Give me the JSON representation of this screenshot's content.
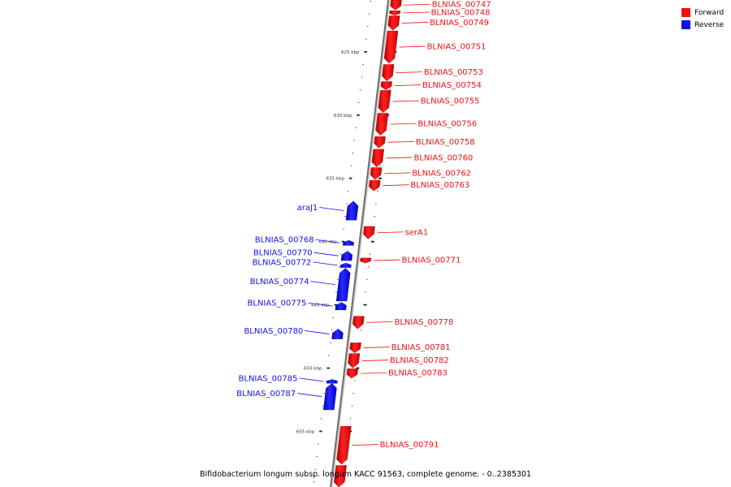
{
  "legend": {
    "forward_label": "Forward",
    "reverse_label": "Reverse",
    "forward_color": "#ee1111",
    "reverse_color": "#1111ee"
  },
  "caption": "Bifidobacterium longum subsp. longum KACC 91563, complete genome. - 0..2385301",
  "axis": {
    "unit": "kbp",
    "range_kbp": [
      620.9,
      659.4
    ],
    "major_ticks": [
      625,
      630,
      635,
      640,
      645,
      650,
      655
    ],
    "major_tick_labels": [
      "625 kbp",
      "630 kbp",
      "635 kbp",
      "640 kbp",
      "645 kbp",
      "650 kbp",
      "655 kbp"
    ],
    "minor_tick_step_kbp": 1
  },
  "genes": [
    {
      "name": "BLNIAS_00747",
      "strand": "forward",
      "start": 620.9,
      "end": 621.7
    },
    {
      "name": "BLNIAS_00748",
      "strand": "forward",
      "start": 621.75,
      "end": 622.1
    },
    {
      "name": "BLNIAS_00749",
      "strand": "forward",
      "start": 622.15,
      "end": 623.3
    },
    {
      "name": "BLNIAS_00751",
      "strand": "forward",
      "start": 623.35,
      "end": 625.9
    },
    {
      "name": "BLNIAS_00753",
      "strand": "forward",
      "start": 626.0,
      "end": 627.3
    },
    {
      "name": "BLNIAS_00754",
      "strand": "forward",
      "start": 627.35,
      "end": 628.0
    },
    {
      "name": "BLNIAS_00755",
      "strand": "forward",
      "start": 628.05,
      "end": 629.8
    },
    {
      "name": "BLNIAS_00756",
      "strand": "forward",
      "start": 629.85,
      "end": 631.6
    },
    {
      "name": "BLNIAS_00758",
      "strand": "forward",
      "start": 631.7,
      "end": 632.6
    },
    {
      "name": "BLNIAS_00760",
      "strand": "forward",
      "start": 632.7,
      "end": 634.1
    },
    {
      "name": "BLNIAS_00762",
      "strand": "forward",
      "start": 634.15,
      "end": 635.1
    },
    {
      "name": "BLNIAS_00763",
      "strand": "forward",
      "start": 635.15,
      "end": 636.0
    },
    {
      "name": "araJ1",
      "strand": "reverse",
      "start": 636.8,
      "end": 638.3
    },
    {
      "name": "serA1",
      "strand": "forward",
      "start": 638.8,
      "end": 639.8
    },
    {
      "name": "BLNIAS_00768",
      "strand": "reverse",
      "start": 639.9,
      "end": 640.3
    },
    {
      "name": "BLNIAS_00770",
      "strand": "reverse",
      "start": 640.75,
      "end": 641.5
    },
    {
      "name": "BLNIAS_00771",
      "strand": "forward",
      "start": 641.3,
      "end": 641.7
    },
    {
      "name": "BLNIAS_00772",
      "strand": "reverse",
      "start": 641.7,
      "end": 642.05
    },
    {
      "name": "BLNIAS_00774",
      "strand": "reverse",
      "start": 642.1,
      "end": 644.7
    },
    {
      "name": "BLNIAS_00775",
      "strand": "reverse",
      "start": 644.8,
      "end": 645.4
    },
    {
      "name": "BLNIAS_00778",
      "strand": "forward",
      "start": 645.9,
      "end": 646.9
    },
    {
      "name": "BLNIAS_00780",
      "strand": "reverse",
      "start": 646.9,
      "end": 647.7
    },
    {
      "name": "BLNIAS_00781",
      "strand": "forward",
      "start": 648.0,
      "end": 648.8
    },
    {
      "name": "BLNIAS_00782",
      "strand": "forward",
      "start": 648.85,
      "end": 650.0
    },
    {
      "name": "BLNIAS_00783",
      "strand": "forward",
      "start": 650.05,
      "end": 650.8
    },
    {
      "name": "BLNIAS_00785",
      "strand": "reverse",
      "start": 650.9,
      "end": 651.2
    },
    {
      "name": "BLNIAS_00787",
      "strand": "reverse",
      "start": 651.2,
      "end": 653.3
    },
    {
      "name": "BLNIAS_00791",
      "strand": "forward",
      "start": 654.6,
      "end": 657.6
    },
    {
      "name": "",
      "strand": "forward",
      "start": 657.7,
      "end": 659.4
    }
  ]
}
